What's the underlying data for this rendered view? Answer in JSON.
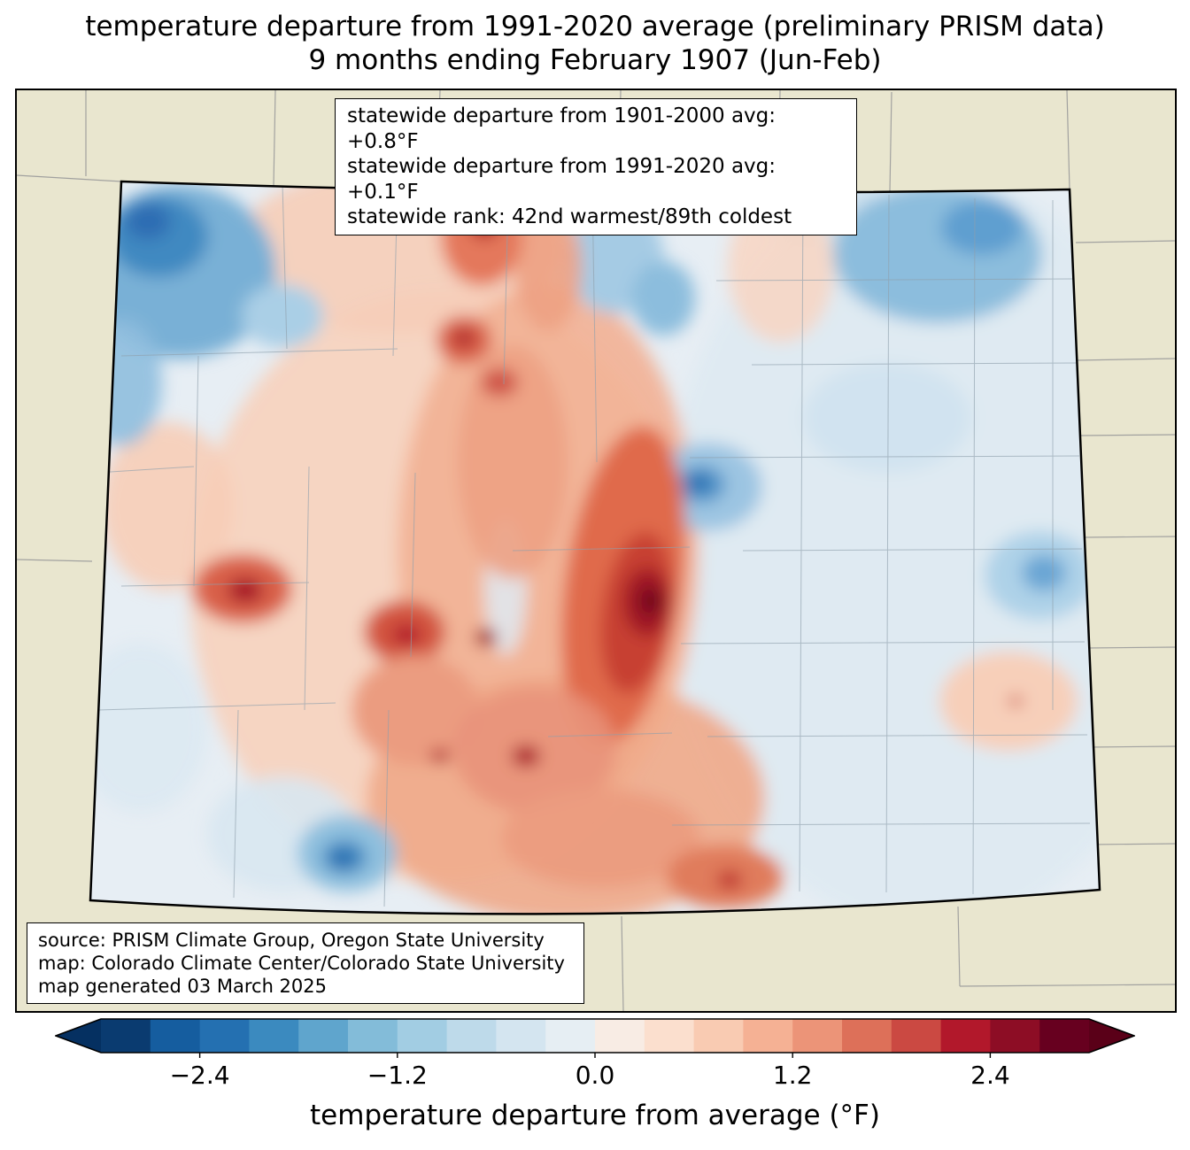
{
  "title": {
    "line1": "temperature departure from 1991-2020 average (preliminary PRISM data)",
    "line2": "9 months ending February 1907 (Jun-Feb)"
  },
  "stats_box": {
    "line1": "statewide departure from 1901-2000 avg: +0.8°F",
    "line2": "statewide departure from 1991-2020 avg: +0.1°F",
    "line3": "statewide rank: 42nd warmest/89th coldest"
  },
  "source_box": {
    "line1": "source: PRISM Climate Group, Oregon State University",
    "line2": "map: Colorado Climate Center/Colorado State University",
    "line3": "map generated 03 March 2025"
  },
  "colorbar": {
    "label": "temperature departure from average (°F)",
    "ticks": [
      "−2.4",
      "−1.2",
      "0.0",
      "1.2",
      "2.4"
    ],
    "under_color": "#053061",
    "over_color": "#5a0018",
    "colors": [
      "#0a3b70",
      "#155d9f",
      "#2470b1",
      "#3b8abf",
      "#5fa5cd",
      "#83bcd9",
      "#a2cde3",
      "#bedaea",
      "#d4e5f0",
      "#e6eef3",
      "#f8ece4",
      "#fbdfce",
      "#f9cbb2",
      "#f5b194",
      "#ec9478",
      "#dd7059",
      "#cb4942",
      "#b2182b",
      "#8d0d25",
      "#67001f"
    ]
  },
  "map": {
    "region": "Colorado",
    "outside_color": "#e9e6cf",
    "base_fill": "#e7eef4",
    "state_border_color": "#000000",
    "county_line_color": "#8fa0ac",
    "neighbor_line_color": "#9a9a9a"
  }
}
